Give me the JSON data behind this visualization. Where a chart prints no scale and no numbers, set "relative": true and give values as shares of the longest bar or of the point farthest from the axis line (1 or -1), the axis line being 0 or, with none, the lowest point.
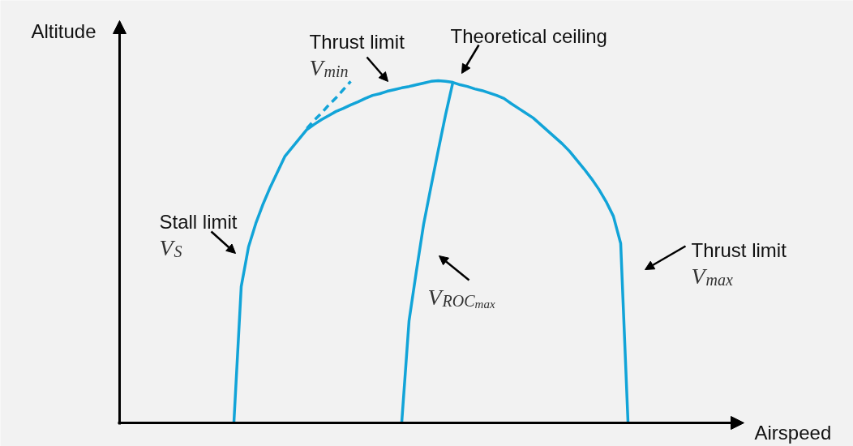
{
  "chart_data": {
    "type": "line",
    "relative": true,
    "categories": [
      null,
      null,
      null,
      null,
      null,
      null,
      null,
      null,
      null,
      null,
      null,
      null,
      null,
      null,
      null,
      null,
      null,
      null,
      null,
      null,
      null,
      null,
      null,
      null,
      null,
      null,
      null,
      null,
      null,
      null,
      null,
      null,
      null,
      null,
      null,
      null,
      null,
      null,
      null,
      null,
      null,
      null,
      null,
      null,
      null,
      null,
      null,
      null,
      null,
      null,
      null,
      null,
      null,
      null,
      null
    ],
    "series": [
      {
        "color": "#12a4d8",
        "values": [
          0,
          0.397,
          0.513,
          0.582,
          0.639,
          0.689,
          0.734,
          0.779,
          0.805,
          0.831,
          0.857,
          0.872,
          0.886,
          0.898,
          0.91,
          0.919,
          0.929,
          0.938,
          0.948,
          0.957,
          0.962,
          0.969,
          0.974,
          0.979,
          0.983,
          0.988,
          0.993,
          0.998,
          1,
          0.998,
          0.995,
          0.988,
          0.983,
          0.976,
          0.971,
          0.964,
          0.957,
          0.948,
          0.933,
          0.919,
          0.905,
          0.891,
          0.872,
          0.853,
          0.834,
          0.815,
          0.793,
          0.767,
          0.741,
          0.713,
          0.682,
          0.646,
          0.603,
          0.523,
          0
        ]
      },
      {
        "color": "#12a4d8",
        "values": [
          null,
          null,
          null,
          null,
          null,
          null,
          null,
          null,
          null,
          null,
          null,
          null,
          null,
          null,
          null,
          null,
          null,
          null,
          null,
          null,
          null,
          null,
          null,
          0,
          0.297,
          0.442,
          0.58,
          0.689,
          0.796,
          0.9,
          0.995,
          null,
          null,
          null,
          null,
          null,
          null,
          null,
          null,
          null,
          null,
          null,
          null,
          null,
          null,
          null,
          null,
          null,
          null,
          null,
          null,
          null,
          null,
          null,
          null
        ]
      },
      {
        "color": "#12a4d8",
        "line_style": "dashed",
        "values": [
          null,
          null,
          null,
          null,
          null,
          null,
          null,
          null,
          null,
          null,
          0.86,
          0.884,
          0.905,
          0.929,
          0.95,
          0.974,
          0.998,
          null,
          null,
          null,
          null,
          null,
          null,
          null,
          null,
          null,
          null,
          null,
          null,
          null,
          null,
          null,
          null,
          null,
          null,
          null,
          null,
          null,
          null,
          null,
          null,
          null,
          null,
          null,
          null,
          null,
          null,
          null,
          null,
          null,
          null,
          null,
          null,
          null,
          null
        ]
      }
    ],
    "annotations": [
      "Altitude",
      "Thrust limit\nV$_{min}$",
      "Theoretical ceiling",
      "Stall limit\nV$_{S}$",
      "Thrust limit\nV$_{max}$",
      "V$_{ROC}$$_{max}$",
      "Airspeed"
    ]
  }
}
